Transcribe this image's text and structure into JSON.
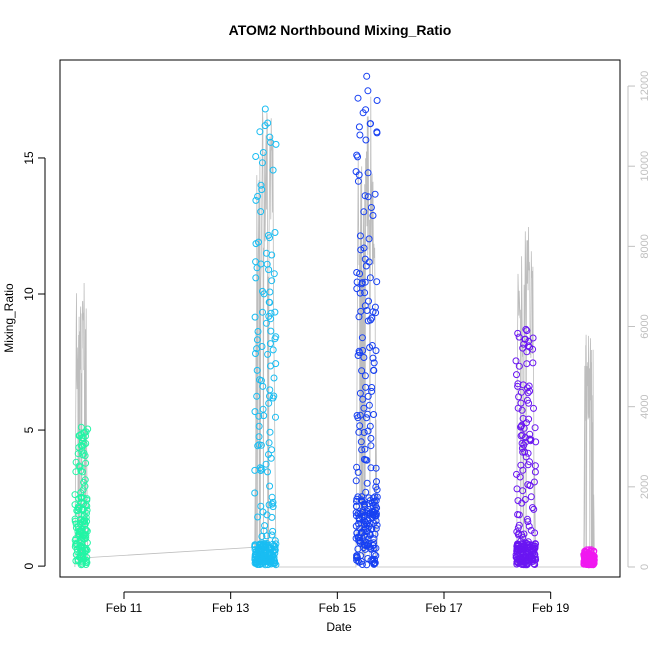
{
  "chart_data": {
    "type": "scatter",
    "title": "ATOM2 Northbound Mixing_Ratio",
    "xlabel": "Date",
    "ylabel": "Mixing_Ratio",
    "x_ticks": [
      "Feb 11",
      "Feb 13",
      "Feb 15",
      "Feb 17",
      "Feb 19"
    ],
    "x_tick_days": [
      11,
      13,
      15,
      17,
      19
    ],
    "xlim_days": [
      9.8,
      20.3
    ],
    "ylim": [
      -0.4,
      18.6
    ],
    "y_ticks": [
      0,
      5,
      10,
      15
    ],
    "y2_ticks": [
      0,
      2000,
      4000,
      6000,
      8000,
      10000,
      12000
    ],
    "y2lim": [
      -250,
      12650
    ],
    "grid": false,
    "point_style": "open circles",
    "secondary_series": "altitude (gray line, right axis, unlabeled)",
    "segments": [
      {
        "color": "#22f5a5",
        "day_range": [
          10.08,
          10.32
        ],
        "y_min": 0.05,
        "y_max": 5.1,
        "median": 2.5,
        "alt_max": 7100
      },
      {
        "color": "#19bdf2",
        "day_range": [
          13.45,
          13.85
        ],
        "y_min": 0.05,
        "y_max": 16.8,
        "median": 0.8,
        "alt_max": 11500
      },
      {
        "color": "#1740f2",
        "day_range": [
          15.35,
          15.75
        ],
        "y_min": 0.05,
        "y_max": 18.0,
        "median": 2.5,
        "alt_max": 12000
      },
      {
        "color": "#6a16f2",
        "day_range": [
          18.35,
          18.72
        ],
        "y_min": 0.05,
        "y_max": 8.7,
        "median": 0.8,
        "alt_max": 8600
      },
      {
        "color": "#f018f0",
        "day_range": [
          19.62,
          19.82
        ],
        "y_min": 0.05,
        "y_max": 0.6,
        "median": 0.2,
        "alt_max": 5900
      }
    ],
    "colors": {
      "axis": "#000000",
      "secondary_axis": "#c0c0c0",
      "altitude_line": "#bdbdbd"
    }
  }
}
